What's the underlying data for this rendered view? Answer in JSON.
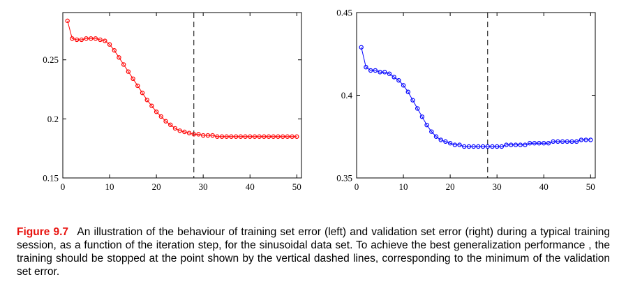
{
  "chart_data": [
    {
      "type": "line",
      "title": "",
      "xlabel": "",
      "ylabel": "",
      "xlim": [
        0,
        51
      ],
      "ylim": [
        0.15,
        0.29
      ],
      "xticks": [
        0,
        10,
        20,
        30,
        40,
        50
      ],
      "yticks": [
        0.15,
        0.2,
        0.25
      ],
      "ytick_labels": [
        "0.15",
        "0.2",
        "0.25"
      ],
      "vline": 28,
      "grid": false,
      "series": [
        {
          "color": "#ff0000",
          "marker": "circle",
          "x": [
            1,
            2,
            3,
            4,
            5,
            6,
            7,
            8,
            9,
            10,
            11,
            12,
            13,
            14,
            15,
            16,
            17,
            18,
            19,
            20,
            21,
            22,
            23,
            24,
            25,
            26,
            27,
            28,
            29,
            30,
            31,
            32,
            33,
            34,
            35,
            36,
            37,
            38,
            39,
            40,
            41,
            42,
            43,
            44,
            45,
            46,
            47,
            48,
            49,
            50
          ],
          "values": [
            0.283,
            0.268,
            0.267,
            0.267,
            0.268,
            0.268,
            0.268,
            0.267,
            0.266,
            0.263,
            0.258,
            0.252,
            0.246,
            0.24,
            0.234,
            0.228,
            0.222,
            0.216,
            0.211,
            0.206,
            0.202,
            0.198,
            0.195,
            0.192,
            0.19,
            0.189,
            0.188,
            0.187,
            0.187,
            0.186,
            0.186,
            0.186,
            0.185,
            0.185,
            0.185,
            0.185,
            0.185,
            0.185,
            0.185,
            0.185,
            0.185,
            0.185,
            0.185,
            0.185,
            0.185,
            0.185,
            0.185,
            0.185,
            0.185,
            0.185
          ]
        }
      ]
    },
    {
      "type": "line",
      "title": "",
      "xlabel": "",
      "ylabel": "",
      "xlim": [
        0,
        51
      ],
      "ylim": [
        0.35,
        0.45
      ],
      "xticks": [
        0,
        10,
        20,
        30,
        40,
        50
      ],
      "yticks": [
        0.35,
        0.4,
        0.45
      ],
      "ytick_labels": [
        "0.35",
        "0.4",
        "0.45"
      ],
      "vline": 28,
      "grid": false,
      "series": [
        {
          "color": "#0000ff",
          "marker": "circle",
          "x": [
            1,
            2,
            3,
            4,
            5,
            6,
            7,
            8,
            9,
            10,
            11,
            12,
            13,
            14,
            15,
            16,
            17,
            18,
            19,
            20,
            21,
            22,
            23,
            24,
            25,
            26,
            27,
            28,
            29,
            30,
            31,
            32,
            33,
            34,
            35,
            36,
            37,
            38,
            39,
            40,
            41,
            42,
            43,
            44,
            45,
            46,
            47,
            48,
            49,
            50
          ],
          "values": [
            0.429,
            0.417,
            0.415,
            0.415,
            0.414,
            0.414,
            0.413,
            0.411,
            0.409,
            0.406,
            0.402,
            0.397,
            0.392,
            0.387,
            0.382,
            0.378,
            0.375,
            0.373,
            0.372,
            0.371,
            0.37,
            0.37,
            0.369,
            0.369,
            0.369,
            0.369,
            0.369,
            0.369,
            0.369,
            0.369,
            0.369,
            0.37,
            0.37,
            0.37,
            0.37,
            0.37,
            0.371,
            0.371,
            0.371,
            0.371,
            0.371,
            0.372,
            0.372,
            0.372,
            0.372,
            0.372,
            0.372,
            0.373,
            0.373,
            0.373
          ]
        }
      ]
    }
  ],
  "caption": {
    "label": "Figure 9.7",
    "text": "An illustration of the behaviour of training set error (left) and validation set error (right) during a typical training session, as a function of the iteration step, for the sinusoidal data set. To achieve the best generalization performance , the training should be stopped at the point shown by the vertical dashed lines, corresponding to the minimum of the validation set error."
  }
}
